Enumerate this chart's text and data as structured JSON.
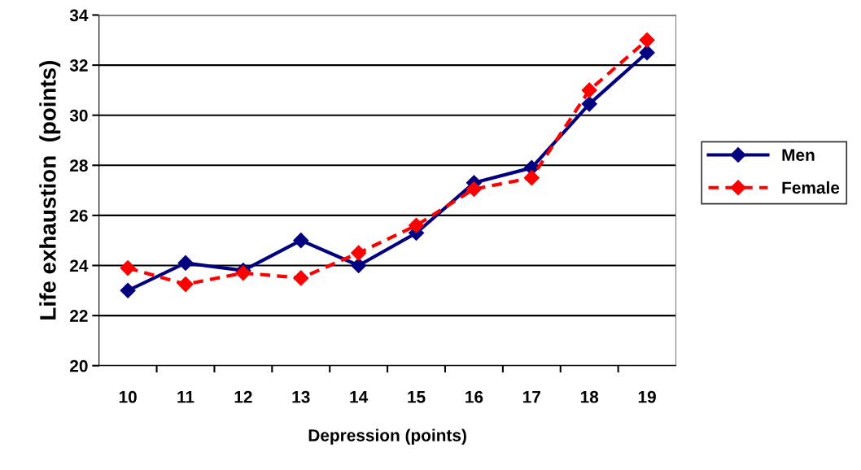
{
  "chart_data": {
    "type": "line",
    "xlabel": "Depression (points)",
    "ylabel": "Life exhaustion  (points)",
    "categories": [
      "10",
      "11",
      "12",
      "13",
      "14",
      "15",
      "16",
      "17",
      "18",
      "19"
    ],
    "series": [
      {
        "name": "Men",
        "color": "#000080",
        "line_style": "solid",
        "values": [
          23.0,
          24.1,
          23.8,
          25.0,
          24.0,
          25.3,
          27.3,
          27.9,
          30.45,
          32.5
        ]
      },
      {
        "name": "Female",
        "color": "#ff0000",
        "line_style": "dashed",
        "values": [
          23.9,
          23.25,
          23.7,
          23.5,
          24.5,
          25.6,
          27.05,
          27.5,
          31.0,
          33.0
        ]
      }
    ],
    "ylim": [
      20,
      34
    ],
    "yticks": [
      20,
      22,
      24,
      26,
      28,
      30,
      32,
      34
    ],
    "grid": "y",
    "legend": "right",
    "marker": "diamond"
  }
}
